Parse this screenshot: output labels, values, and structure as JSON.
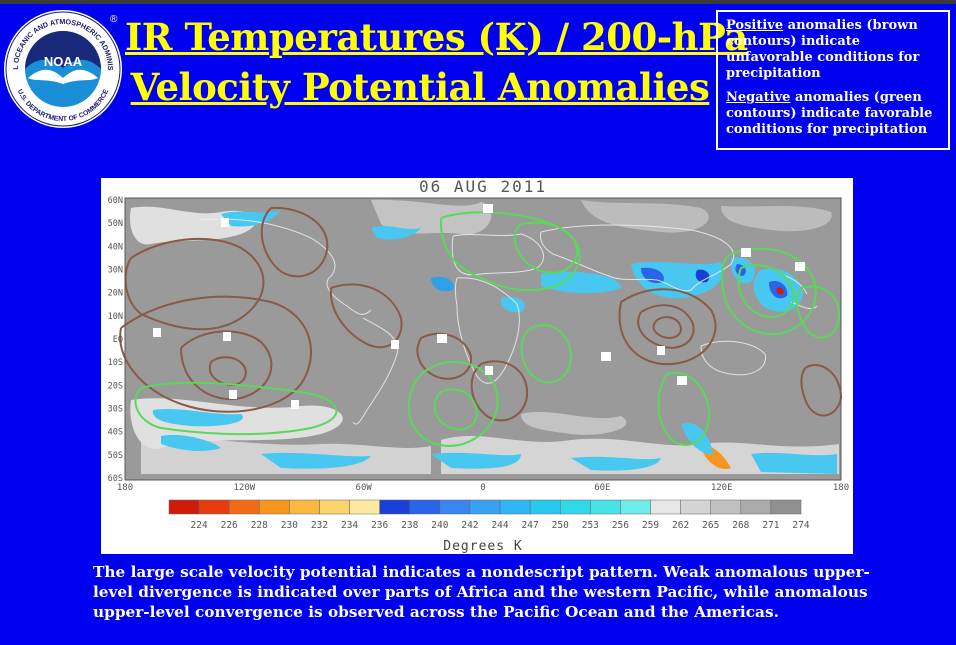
{
  "header": {
    "title_line1": "IR Temperatures (K) / 200-hPa",
    "title_line2": "Velocity Potential Anomalies"
  },
  "logo": {
    "ring_text": "NATIONAL OCEANIC AND ATMOSPHERIC ADMINISTRATION",
    "bottom_text": "U.S. DEPARTMENT OF COMMERCE",
    "center_text": "NOAA",
    "registered": "®"
  },
  "legend_box": {
    "positive_word": "Positive",
    "positive_text": " anomalies (brown contours) indicate unfavorable conditions for precipitation",
    "negative_word": "Negative",
    "negative_text": " anomalies (green contours) indicate favorable conditions for precipitation"
  },
  "map": {
    "date": "06 AUG 2011",
    "lat_labels": [
      "60N",
      "50N",
      "40N",
      "30N",
      "20N",
      "10N",
      "EQ",
      "10S",
      "20S",
      "30S",
      "40S",
      "50S",
      "60S"
    ],
    "lon_labels": [
      "180",
      "120W",
      "60W",
      "0",
      "60E",
      "120E",
      "180"
    ],
    "colorbar_labels": [
      "224",
      "226",
      "228",
      "230",
      "232",
      "234",
      "236",
      "238",
      "240",
      "242",
      "244",
      "247",
      "250",
      "253",
      "256",
      "259",
      "262",
      "265",
      "268",
      "271",
      "274"
    ],
    "colorbar_colors": [
      "#d01a0a",
      "#e63b10",
      "#f06a18",
      "#f7961e",
      "#fab840",
      "#fcd46e",
      "#fde9a0",
      "#1a3fd8",
      "#2a64e8",
      "#3a86f0",
      "#3aa0f4",
      "#30b6f4",
      "#28c8ee",
      "#30d8ea",
      "#48e2e8",
      "#70eaea",
      "#e6e6e6",
      "#d4d4d4",
      "#c0c0c0",
      "#aaaaaa",
      "#909090"
    ],
    "axis_title": "Degrees K",
    "colors": {
      "land_background": "#9a9a9a",
      "positive_contour": "#8a5a48",
      "negative_contour": "#5ad85a"
    }
  },
  "caption": {
    "text": "The large scale velocity potential indicates a nondescript pattern. Weak anomalous upper-level divergence is indicated over parts of Africa and the western Pacific, while anomalous upper-level convergence is observed across the Pacific Ocean and the Americas."
  }
}
